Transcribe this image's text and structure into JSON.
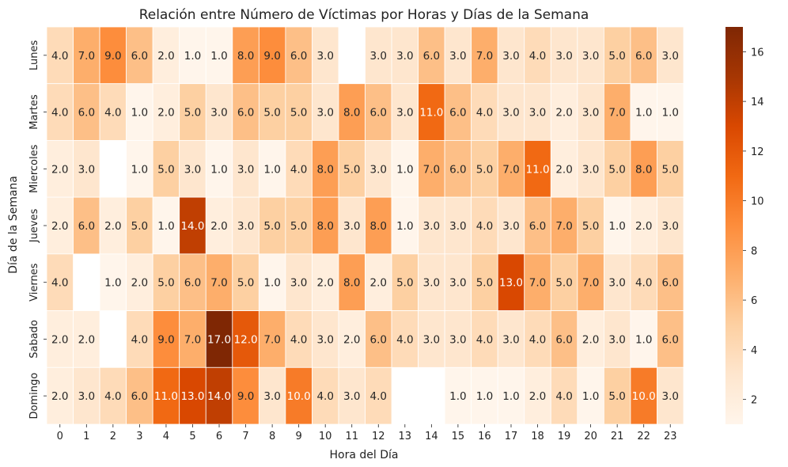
{
  "chart_data": {
    "type": "heatmap",
    "title": "Relación entre Número de Víctimas por Horas y Días de la Semana",
    "xlabel": "Hora del Día",
    "ylabel": "Día de la Semana",
    "x_categories": [
      "0",
      "1",
      "2",
      "3",
      "4",
      "5",
      "6",
      "7",
      "8",
      "9",
      "10",
      "11",
      "12",
      "13",
      "14",
      "15",
      "16",
      "17",
      "18",
      "19",
      "20",
      "21",
      "22",
      "23"
    ],
    "y_categories": [
      "Lunes",
      "Martes",
      "Miercoles",
      "Jueves",
      "Viernes",
      "Sabado",
      "Domingo"
    ],
    "values": [
      [
        4,
        7,
        9,
        6,
        2,
        1,
        1,
        8,
        9,
        6,
        3,
        null,
        3,
        3,
        6,
        3,
        7,
        3,
        4,
        3,
        3,
        5,
        6,
        3
      ],
      [
        4,
        6,
        4,
        1,
        2,
        5,
        3,
        6,
        5,
        5,
        3,
        8,
        6,
        3,
        11,
        6,
        4,
        3,
        3,
        2,
        3,
        7,
        1,
        1
      ],
      [
        2,
        3,
        null,
        1,
        5,
        3,
        1,
        3,
        1,
        4,
        8,
        5,
        3,
        1,
        7,
        6,
        5,
        7,
        11,
        2,
        3,
        5,
        8,
        5
      ],
      [
        2,
        6,
        2,
        5,
        1,
        14,
        2,
        3,
        5,
        5,
        8,
        3,
        8,
        1,
        3,
        3,
        4,
        3,
        6,
        7,
        5,
        1,
        2,
        3
      ],
      [
        4,
        null,
        1,
        2,
        5,
        6,
        7,
        5,
        1,
        3,
        2,
        8,
        2,
        5,
        3,
        3,
        5,
        13,
        7,
        5,
        7,
        3,
        4,
        6
      ],
      [
        2,
        2,
        null,
        4,
        9,
        7,
        17,
        12,
        7,
        4,
        3,
        2,
        6,
        4,
        3,
        3,
        4,
        3,
        4,
        6,
        2,
        3,
        1,
        6
      ],
      [
        2,
        3,
        4,
        6,
        11,
        13,
        14,
        9,
        3,
        10,
        4,
        3,
        4,
        null,
        null,
        1,
        1,
        1,
        2,
        4,
        1,
        5,
        10,
        3
      ]
    ],
    "value_format": "0.0",
    "colormap": "Oranges",
    "color_range": [
      1,
      17
    ],
    "colorbar_ticks": [
      "2",
      "4",
      "6",
      "8",
      "10",
      "12",
      "14",
      "16"
    ],
    "grid": false
  }
}
